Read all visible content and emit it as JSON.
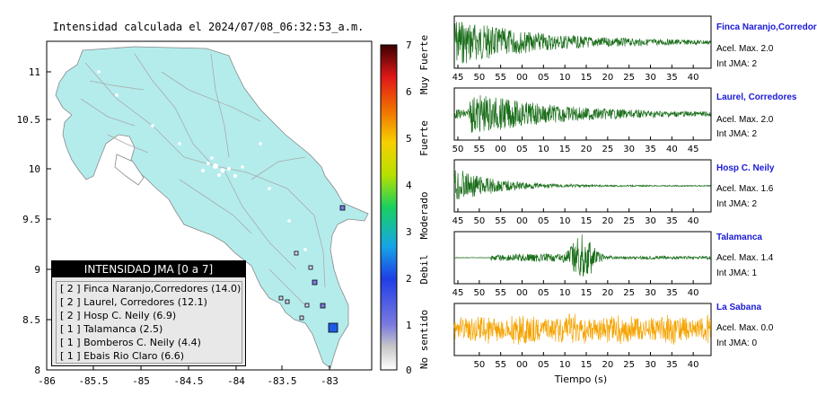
{
  "map": {
    "title": "Intensidad calculada el 2024/07/08_06:32:53_a.m.",
    "x_ticks": [
      "-86",
      "-85.5",
      "-85",
      "-84.5",
      "-84",
      "-83.5",
      "-83"
    ],
    "y_ticks": [
      "11",
      "10.5",
      "10",
      "9.5",
      "9",
      "8.5",
      "8"
    ],
    "colorbar_ticks": [
      "7",
      "6",
      "5",
      "4",
      "3",
      "2",
      "1",
      "0"
    ],
    "colorbar_labels": [
      "Muy Fuerte",
      "Fuerte",
      "Moderado",
      "Debil",
      "No sentido"
    ],
    "legend_title": "INTENSIDAD JMA [0 a 7]",
    "legend_items": [
      "[ 2 ]  Finca Naranjo,Corredores (14.0)",
      "[ 2 ]  Laurel, Corredores (12.1)",
      "[ 2 ]  Hosp C. Neily (6.9)",
      "[ 1 ]  Talamanca (2.5)",
      "[ 1 ]  Bomberos C. Neily (4.4)",
      "[ 1 ]  Ebais Rio Claro (6.6)"
    ]
  },
  "colors": {
    "land": "#b4ecec",
    "trace_green": "#1a6e1a",
    "trace_orange": "#f5a300",
    "station_name": "#1a1ad6"
  },
  "chart_data": {
    "type": "line",
    "xlabel": "Tiempo (s)",
    "traces": [
      {
        "station": "Finca Naranjo,Corredor",
        "accel": "Acel. Max. 2.0",
        "jma": "Int JMA: 2",
        "ticks": [
          "45",
          "50",
          "55",
          "00",
          "05",
          "10",
          "15",
          "20",
          "25",
          "30",
          "35",
          "40"
        ]
      },
      {
        "station": "Laurel, Corredores",
        "accel": "Acel. Max. 2.0",
        "jma": "Int JMA: 2",
        "ticks": [
          "50",
          "55",
          "00",
          "05",
          "10",
          "15",
          "20",
          "25",
          "30",
          "35",
          "40",
          "45"
        ]
      },
      {
        "station": "Hosp C. Neily",
        "accel": "Acel. Max. 1.6",
        "jma": "Int JMA: 2",
        "ticks": [
          "45",
          "50",
          "55",
          "00",
          "05",
          "10",
          "15",
          "20",
          "25",
          "30",
          "35",
          "40"
        ]
      },
      {
        "station": "Talamanca",
        "accel": "Acel. Max. 1.4",
        "jma": "Int JMA: 1",
        "ticks": [
          "45",
          "50",
          "55",
          "00",
          "05",
          "10",
          "15",
          "20",
          "25",
          "30",
          "35",
          "40"
        ]
      },
      {
        "station": "La Sabana",
        "accel": "Acel. Max. 0.0",
        "jma": "Int JMA: 0",
        "ticks": [
          "50",
          "55",
          "00",
          "05",
          "10",
          "15",
          "20",
          "25",
          "30",
          "35",
          "40"
        ]
      }
    ]
  }
}
